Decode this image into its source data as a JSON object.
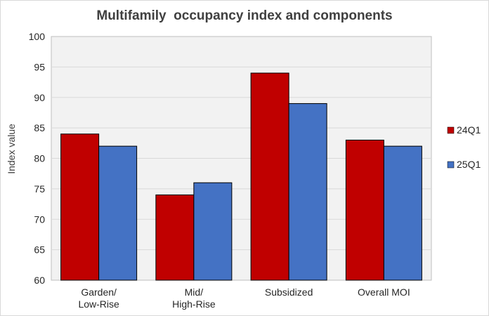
{
  "chart_data": {
    "type": "bar",
    "title": "Multifamily  occupancy index and components",
    "ylabel": "Index value",
    "xlabel": "",
    "categories": [
      [
        "Garden/",
        "Low-Rise"
      ],
      [
        "Mid/",
        "High-Rise"
      ],
      [
        "Subsidized"
      ],
      [
        "Overall MOI"
      ]
    ],
    "series": [
      {
        "name": "24Q1",
        "color": "#c00000",
        "values": [
          84,
          74,
          94,
          83
        ]
      },
      {
        "name": "25Q1",
        "color": "#4472c4",
        "values": [
          82,
          76,
          89,
          82
        ]
      }
    ],
    "ylim": [
      60,
      100
    ],
    "yticks": [
      60,
      65,
      70,
      75,
      80,
      85,
      90,
      95,
      100
    ],
    "grid": true,
    "legend_position": "right"
  }
}
